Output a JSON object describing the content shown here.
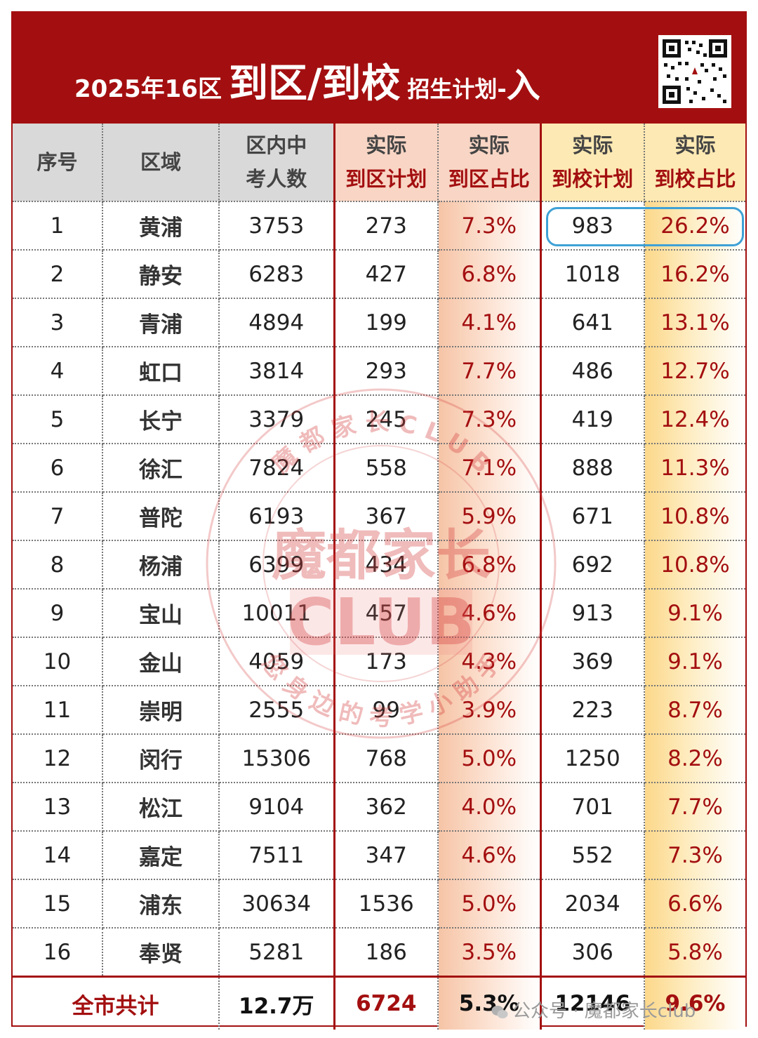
{
  "header": {
    "part1": "2025年16区",
    "part2": "到区/到校",
    "part3": "招生计划-",
    "part4": "入"
  },
  "columns": {
    "index": "序号",
    "district": "区域",
    "students_l1": "区内中",
    "students_l2": "考人数",
    "plan_l1": "实际",
    "plan_l2": "到区计划",
    "ratio_l1": "实际",
    "ratio_l2": "到区占比",
    "school_plan_l1": "实际",
    "school_plan_l2": "到校计划",
    "school_ratio_l1": "实际",
    "school_ratio_l2": "到校占比"
  },
  "rows": [
    {
      "no": "1",
      "district": "黄浦",
      "students": "3753",
      "plan": "273",
      "ratio": "7.3%",
      "school_plan": "983",
      "school_ratio": "26.2%"
    },
    {
      "no": "2",
      "district": "静安",
      "students": "6283",
      "plan": "427",
      "ratio": "6.8%",
      "school_plan": "1018",
      "school_ratio": "16.2%"
    },
    {
      "no": "3",
      "district": "青浦",
      "students": "4894",
      "plan": "199",
      "ratio": "4.1%",
      "school_plan": "641",
      "school_ratio": "13.1%"
    },
    {
      "no": "4",
      "district": "虹口",
      "students": "3814",
      "plan": "293",
      "ratio": "7.7%",
      "school_plan": "486",
      "school_ratio": "12.7%"
    },
    {
      "no": "5",
      "district": "长宁",
      "students": "3379",
      "plan": "245",
      "ratio": "7.3%",
      "school_plan": "419",
      "school_ratio": "12.4%"
    },
    {
      "no": "6",
      "district": "徐汇",
      "students": "7824",
      "plan": "558",
      "ratio": "7.1%",
      "school_plan": "888",
      "school_ratio": "11.3%"
    },
    {
      "no": "7",
      "district": "普陀",
      "students": "6193",
      "plan": "367",
      "ratio": "5.9%",
      "school_plan": "671",
      "school_ratio": "10.8%"
    },
    {
      "no": "8",
      "district": "杨浦",
      "students": "6399",
      "plan": "434",
      "ratio": "6.8%",
      "school_plan": "692",
      "school_ratio": "10.8%"
    },
    {
      "no": "9",
      "district": "宝山",
      "students": "10011",
      "plan": "457",
      "ratio": "4.6%",
      "school_plan": "913",
      "school_ratio": "9.1%"
    },
    {
      "no": "10",
      "district": "金山",
      "students": "4059",
      "plan": "173",
      "ratio": "4.3%",
      "school_plan": "369",
      "school_ratio": "9.1%"
    },
    {
      "no": "11",
      "district": "崇明",
      "students": "2555",
      "plan": "99",
      "ratio": "3.9%",
      "school_plan": "223",
      "school_ratio": "8.7%"
    },
    {
      "no": "12",
      "district": "闵行",
      "students": "15306",
      "plan": "768",
      "ratio": "5.0%",
      "school_plan": "1250",
      "school_ratio": "8.2%"
    },
    {
      "no": "13",
      "district": "松江",
      "students": "9104",
      "plan": "362",
      "ratio": "4.0%",
      "school_plan": "701",
      "school_ratio": "7.7%"
    },
    {
      "no": "14",
      "district": "嘉定",
      "students": "7511",
      "plan": "347",
      "ratio": "4.6%",
      "school_plan": "552",
      "school_ratio": "7.3%"
    },
    {
      "no": "15",
      "district": "浦东",
      "students": "30634",
      "plan": "1536",
      "ratio": "5.0%",
      "school_plan": "2034",
      "school_ratio": "6.6%"
    },
    {
      "no": "16",
      "district": "奉贤",
      "students": "5281",
      "plan": "186",
      "ratio": "3.5%",
      "school_plan": "306",
      "school_ratio": "5.8%"
    }
  ],
  "total": {
    "label": "全市共计",
    "students": "12.7万",
    "plan": "6724",
    "ratio": "5.3%",
    "school_plan": "12146",
    "school_ratio": "9.6%"
  },
  "watermark": {
    "line1": "魔都家长",
    "line2": "CLUB",
    "ring_top": "魔 都 家 长 C L U B",
    "ring_bottom": "您 身 边 的 考 学 小 助 手"
  },
  "footer_watermark": "公众号 · 魔都家长club",
  "colors": {
    "brand_red": "#a30f10",
    "highlight_blue": "#3fa1d6"
  }
}
